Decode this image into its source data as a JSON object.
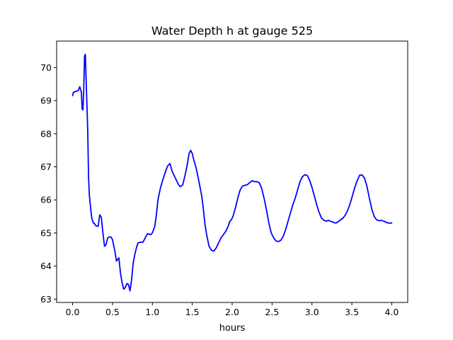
{
  "chart_data": {
    "type": "line",
    "title": "Water Depth h at gauge 525",
    "xlabel": "hours",
    "ylabel": "",
    "xlim": [
      -0.2,
      4.2
    ],
    "ylim": [
      62.9,
      70.8
    ],
    "xticks": [
      0.0,
      0.5,
      1.0,
      1.5,
      2.0,
      2.5,
      3.0,
      3.5,
      4.0
    ],
    "xtick_labels": [
      "0.0",
      "0.5",
      "1.0",
      "1.5",
      "2.0",
      "2.5",
      "3.0",
      "3.5",
      "4.0"
    ],
    "yticks": [
      63,
      64,
      65,
      66,
      67,
      68,
      69,
      70
    ],
    "ytick_labels": [
      "63",
      "64",
      "65",
      "66",
      "67",
      "68",
      "69",
      "70"
    ],
    "grid": false,
    "legend": "none",
    "series": [
      {
        "color": "#0000ff",
        "x": [
          0.0,
          0.01,
          0.04,
          0.07,
          0.09,
          0.11,
          0.12,
          0.13,
          0.14,
          0.15,
          0.16,
          0.17,
          0.19,
          0.2,
          0.21,
          0.22,
          0.24,
          0.26,
          0.27,
          0.29,
          0.32,
          0.34,
          0.36,
          0.38,
          0.4,
          0.42,
          0.44,
          0.46,
          0.48,
          0.5,
          0.53,
          0.55,
          0.58,
          0.6,
          0.62,
          0.64,
          0.66,
          0.68,
          0.7,
          0.72,
          0.74,
          0.76,
          0.78,
          0.8,
          0.82,
          0.85,
          0.88,
          0.9,
          0.92,
          0.94,
          0.96,
          0.98,
          1.0,
          1.03,
          1.05,
          1.07,
          1.1,
          1.13,
          1.16,
          1.19,
          1.22,
          1.25,
          1.28,
          1.31,
          1.33,
          1.35,
          1.38,
          1.41,
          1.44,
          1.46,
          1.48,
          1.5,
          1.52,
          1.55,
          1.58,
          1.6,
          1.62,
          1.64,
          1.66,
          1.68,
          1.71,
          1.74,
          1.77,
          1.8,
          1.83,
          1.86,
          1.89,
          1.92,
          1.95,
          1.97,
          1.99,
          2.01,
          2.04,
          2.07,
          2.1,
          2.13,
          2.16,
          2.19,
          2.22,
          2.25,
          2.28,
          2.31,
          2.34,
          2.37,
          2.4,
          2.43,
          2.46,
          2.49,
          2.52,
          2.55,
          2.58,
          2.61,
          2.64,
          2.67,
          2.7,
          2.73,
          2.76,
          2.79,
          2.82,
          2.85,
          2.88,
          2.91,
          2.94,
          2.97,
          3.0,
          3.03,
          3.06,
          3.09,
          3.12,
          3.15,
          3.18,
          3.21,
          3.24,
          3.27,
          3.3,
          3.33,
          3.36,
          3.39,
          3.42,
          3.45,
          3.48,
          3.51,
          3.54,
          3.57,
          3.6,
          3.63,
          3.66,
          3.69,
          3.72,
          3.75,
          3.78,
          3.81,
          3.84,
          3.87,
          3.9,
          3.93,
          3.96,
          3.98,
          4.0
        ],
        "y": [
          69.15,
          69.25,
          69.28,
          69.3,
          69.42,
          69.25,
          68.75,
          68.72,
          69.35,
          70.35,
          70.4,
          69.6,
          68.1,
          66.7,
          66.15,
          65.9,
          65.45,
          65.3,
          65.3,
          65.22,
          65.2,
          65.55,
          65.48,
          65.0,
          64.6,
          64.65,
          64.85,
          64.88,
          64.88,
          64.8,
          64.45,
          64.15,
          64.25,
          63.8,
          63.5,
          63.3,
          63.35,
          63.47,
          63.45,
          63.25,
          63.6,
          64.1,
          64.35,
          64.55,
          64.7,
          64.72,
          64.72,
          64.8,
          64.9,
          64.98,
          64.96,
          64.95,
          65.0,
          65.2,
          65.55,
          66.0,
          66.35,
          66.6,
          66.82,
          67.02,
          67.1,
          66.85,
          66.7,
          66.55,
          66.45,
          66.4,
          66.45,
          66.75,
          67.1,
          67.4,
          67.5,
          67.4,
          67.2,
          66.95,
          66.6,
          66.35,
          66.1,
          65.7,
          65.25,
          64.95,
          64.6,
          64.48,
          64.45,
          64.55,
          64.7,
          64.85,
          64.95,
          65.05,
          65.2,
          65.35,
          65.4,
          65.5,
          65.75,
          66.05,
          66.3,
          66.42,
          66.44,
          66.46,
          66.52,
          66.58,
          66.55,
          66.55,
          66.52,
          66.35,
          66.05,
          65.7,
          65.3,
          65.0,
          64.85,
          64.76,
          64.74,
          64.78,
          64.9,
          65.1,
          65.35,
          65.6,
          65.85,
          66.05,
          66.3,
          66.55,
          66.7,
          66.76,
          66.74,
          66.6,
          66.38,
          66.12,
          65.85,
          65.62,
          65.45,
          65.38,
          65.36,
          65.38,
          65.35,
          65.32,
          65.3,
          65.34,
          65.4,
          65.45,
          65.55,
          65.7,
          65.9,
          66.15,
          66.4,
          66.6,
          66.75,
          66.75,
          66.65,
          66.4,
          66.05,
          65.72,
          65.5,
          65.4,
          65.37,
          65.38,
          65.36,
          65.32,
          65.3,
          65.3,
          65.3
        ]
      }
    ]
  }
}
